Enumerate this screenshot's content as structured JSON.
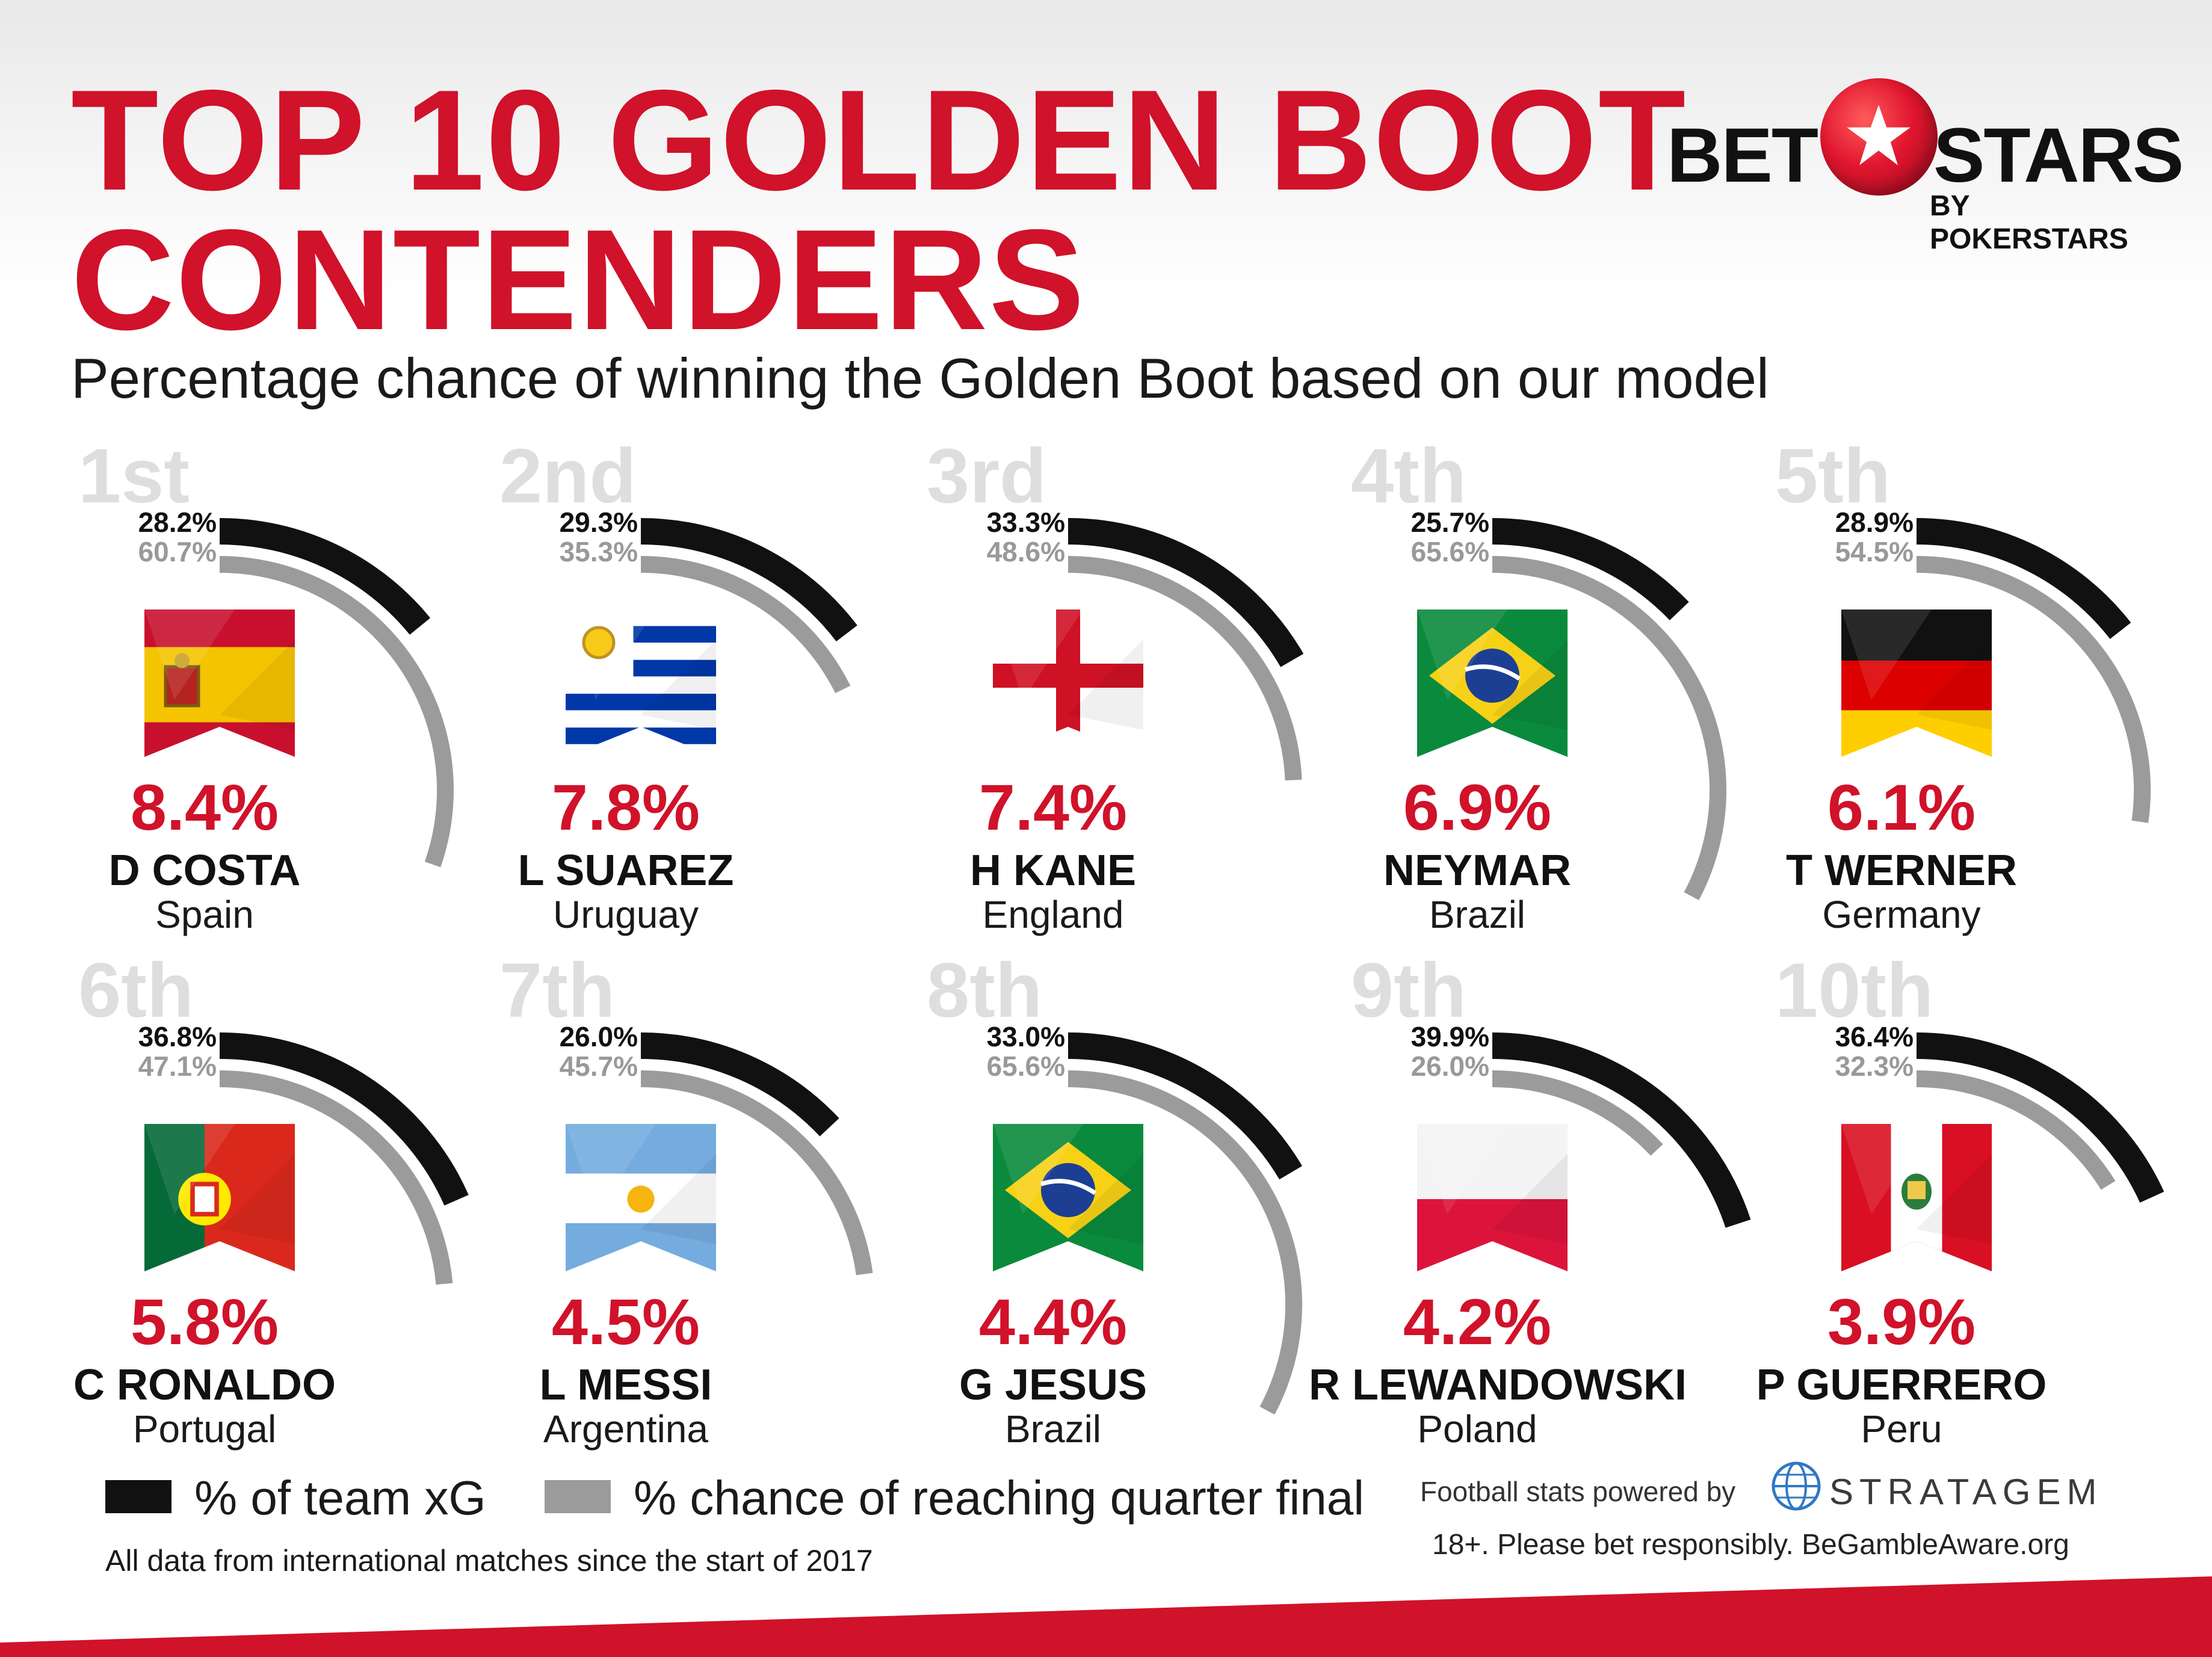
{
  "title_line1": "TOP 10 GOLDEN BOOT",
  "title_line2": "CONTENDERS",
  "subtitle": "Percentage chance of winning the Golden Boot based on our model",
  "brand": {
    "left": "BET",
    "right": "STARS",
    "by": "BY POKERSTARS"
  },
  "colors": {
    "accent_red": "#d0122a",
    "xg_bar": "#111111",
    "qf_bar": "#9b9b9b",
    "rank_gray": "#dedede"
  },
  "players": [
    {
      "rank": "1st",
      "xg_label": "28.2%",
      "qf_label": "60.7%",
      "chance_label": "8.4%",
      "name": "D COSTA",
      "country": "Spain",
      "flag": "spain-flag"
    },
    {
      "rank": "2nd",
      "xg_label": "29.3%",
      "qf_label": "35.3%",
      "chance_label": "7.8%",
      "name": "L SUAREZ",
      "country": "Uruguay",
      "flag": "uruguay-flag"
    },
    {
      "rank": "3rd",
      "xg_label": "33.3%",
      "qf_label": "48.6%",
      "chance_label": "7.4%",
      "name": "H KANE",
      "country": "England",
      "flag": "england-flag"
    },
    {
      "rank": "4th",
      "xg_label": "25.7%",
      "qf_label": "65.6%",
      "chance_label": "6.9%",
      "name": "NEYMAR",
      "country": "Brazil",
      "flag": "brazil-flag"
    },
    {
      "rank": "5th",
      "xg_label": "28.9%",
      "qf_label": "54.5%",
      "chance_label": "6.1%",
      "name": "T WERNER",
      "country": "Germany",
      "flag": "germany-flag"
    },
    {
      "rank": "6th",
      "xg_label": "36.8%",
      "qf_label": "47.1%",
      "chance_label": "5.8%",
      "name": "C RONALDO",
      "country": "Portugal",
      "flag": "portugal-flag"
    },
    {
      "rank": "7th",
      "xg_label": "26.0%",
      "qf_label": "45.7%",
      "chance_label": "4.5%",
      "name": "L MESSI",
      "country": "Argentina",
      "flag": "argentina-flag"
    },
    {
      "rank": "8th",
      "xg_label": "33.0%",
      "qf_label": "65.6%",
      "chance_label": "4.4%",
      "name": "G JESUS",
      "country": "Brazil",
      "flag": "brazil-flag"
    },
    {
      "rank": "9th",
      "xg_label": "39.9%",
      "qf_label": "26.0%",
      "chance_label": "4.2%",
      "name": "R LEWANDOWSKI",
      "country": "Poland",
      "flag": "poland-flag"
    },
    {
      "rank": "10th",
      "xg_label": "36.4%",
      "qf_label": "32.3%",
      "chance_label": "3.9%",
      "name": "P GUERRERO",
      "country": "Peru",
      "flag": "peru-flag"
    }
  ],
  "chart_data": {
    "type": "bar",
    "categories": [
      "D COSTA",
      "L SUAREZ",
      "H KANE",
      "NEYMAR",
      "T WERNER",
      "C RONALDO",
      "L MESSI",
      "G JESUS",
      "R LEWANDOWSKI",
      "P GUERRERO"
    ],
    "series": [
      {
        "name": "% of team xG",
        "values": [
          28.2,
          29.3,
          33.3,
          25.7,
          28.9,
          36.8,
          26.0,
          33.0,
          39.9,
          36.4
        ]
      },
      {
        "name": "% chance of reaching quarter final",
        "values": [
          60.7,
          35.3,
          48.6,
          65.6,
          54.5,
          47.1,
          45.7,
          65.6,
          26.0,
          32.3
        ]
      }
    ],
    "chance_of_winning": [
      8.4,
      7.8,
      7.4,
      6.9,
      6.1,
      5.8,
      4.5,
      4.4,
      4.2,
      3.9
    ],
    "title": "TOP 10 GOLDEN BOOT CONTENDERS",
    "subtitle": "Percentage chance of winning the Golden Boot based on our model",
    "display": "radial-arc"
  },
  "legend": {
    "xg": "% of team xG",
    "qf": "% chance of reaching quarter final"
  },
  "footnote": "All data from international matches since the start of 2017",
  "powered_by": "Football stats powered by",
  "stratagem": "STRATAGEM",
  "disclaimer": "18+. Please bet responsibly. BeGambleAware.org"
}
